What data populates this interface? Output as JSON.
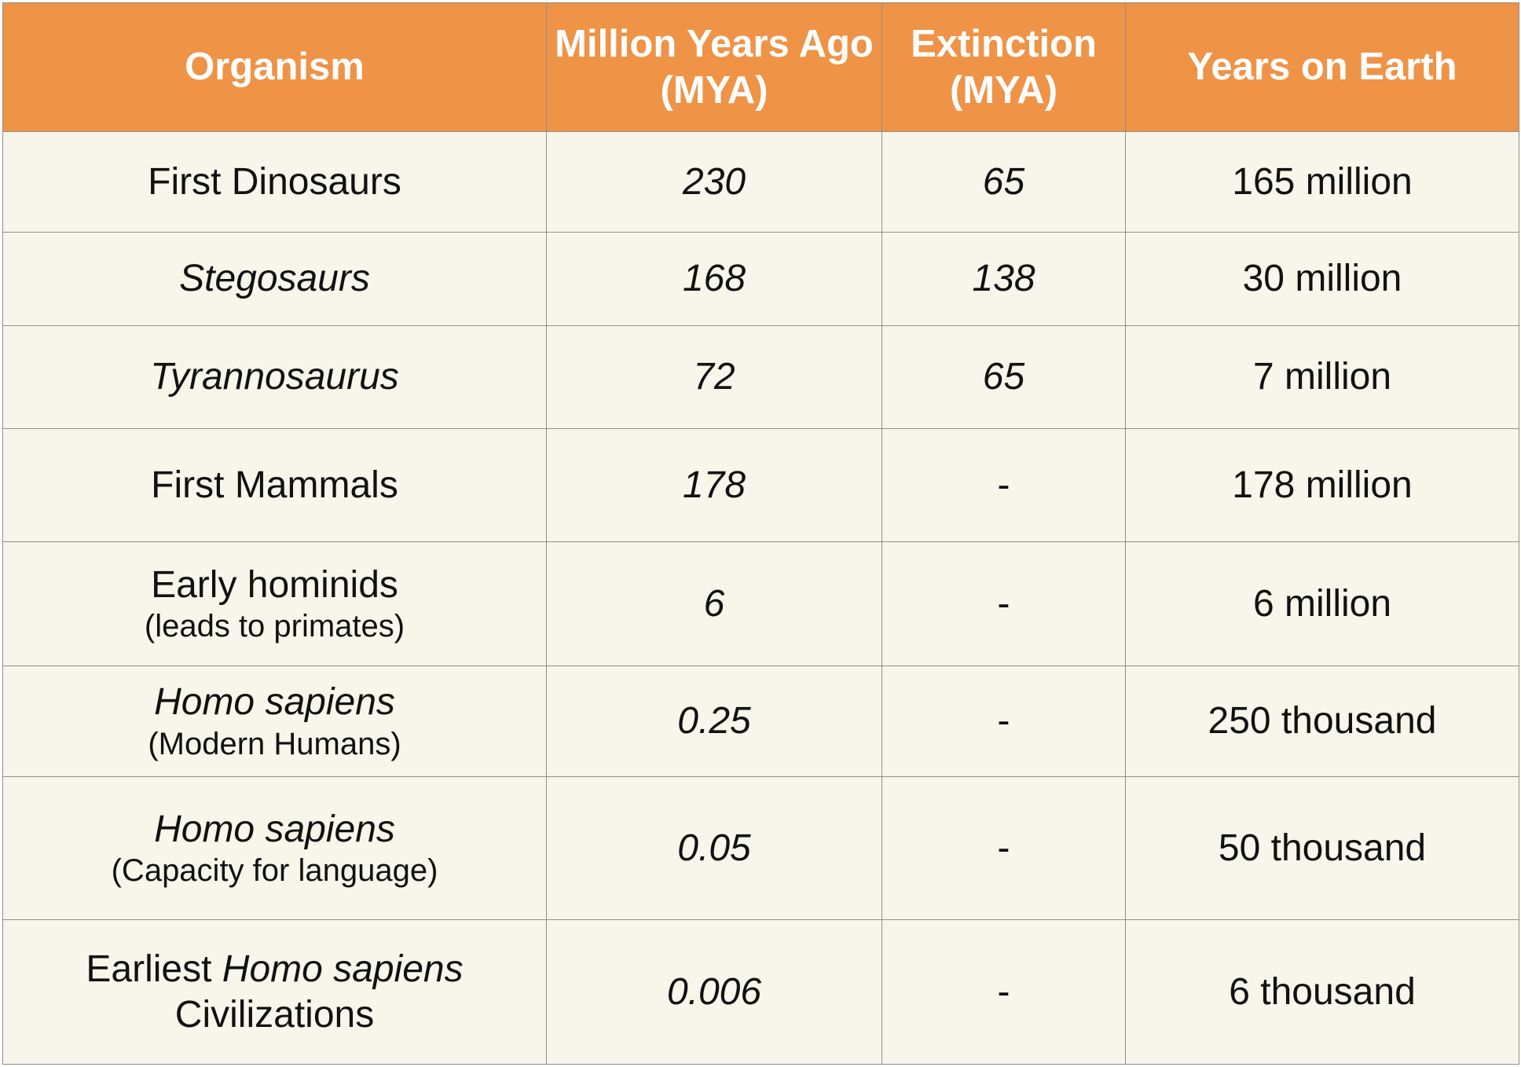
{
  "columns": [
    "Organism",
    "Million Years Ago (MYA)",
    "Extinction (MYA)",
    "Years on Earth"
  ],
  "rows": [
    {
      "organism": "First Dinosaurs",
      "organism_note": "",
      "mya": "230",
      "extinction": "65",
      "years": "165 million"
    },
    {
      "organism": "Stegosaurs",
      "organism_note": "",
      "mya": "168",
      "extinction": "138",
      "years": "30 million"
    },
    {
      "organism": "Tyrannosaurus",
      "organism_note": "",
      "mya": "72",
      "extinction": "65",
      "years": "7 million"
    },
    {
      "organism": "First Mammals",
      "organism_note": "",
      "mya": "178",
      "extinction": "-",
      "years": "178 million"
    },
    {
      "organism": "Early hominids",
      "organism_note": "(leads to primates)",
      "mya": "6",
      "extinction": "-",
      "years": "6 million"
    },
    {
      "organism": "Homo sapiens",
      "organism_note": "(Modern Humans)",
      "mya": "0.25",
      "extinction": "-",
      "years": "250 thousand"
    },
    {
      "organism": "Homo sapiens",
      "organism_note": "(Capacity for language)",
      "mya": "0.05",
      "extinction": "-",
      "years": "50 thousand"
    },
    {
      "organism_prefix": "Earliest",
      "organism": "Homo sapiens",
      "organism_suffix": "Civilizations",
      "mya": "0.006",
      "extinction": "-",
      "years": "6 thousand"
    }
  ]
}
